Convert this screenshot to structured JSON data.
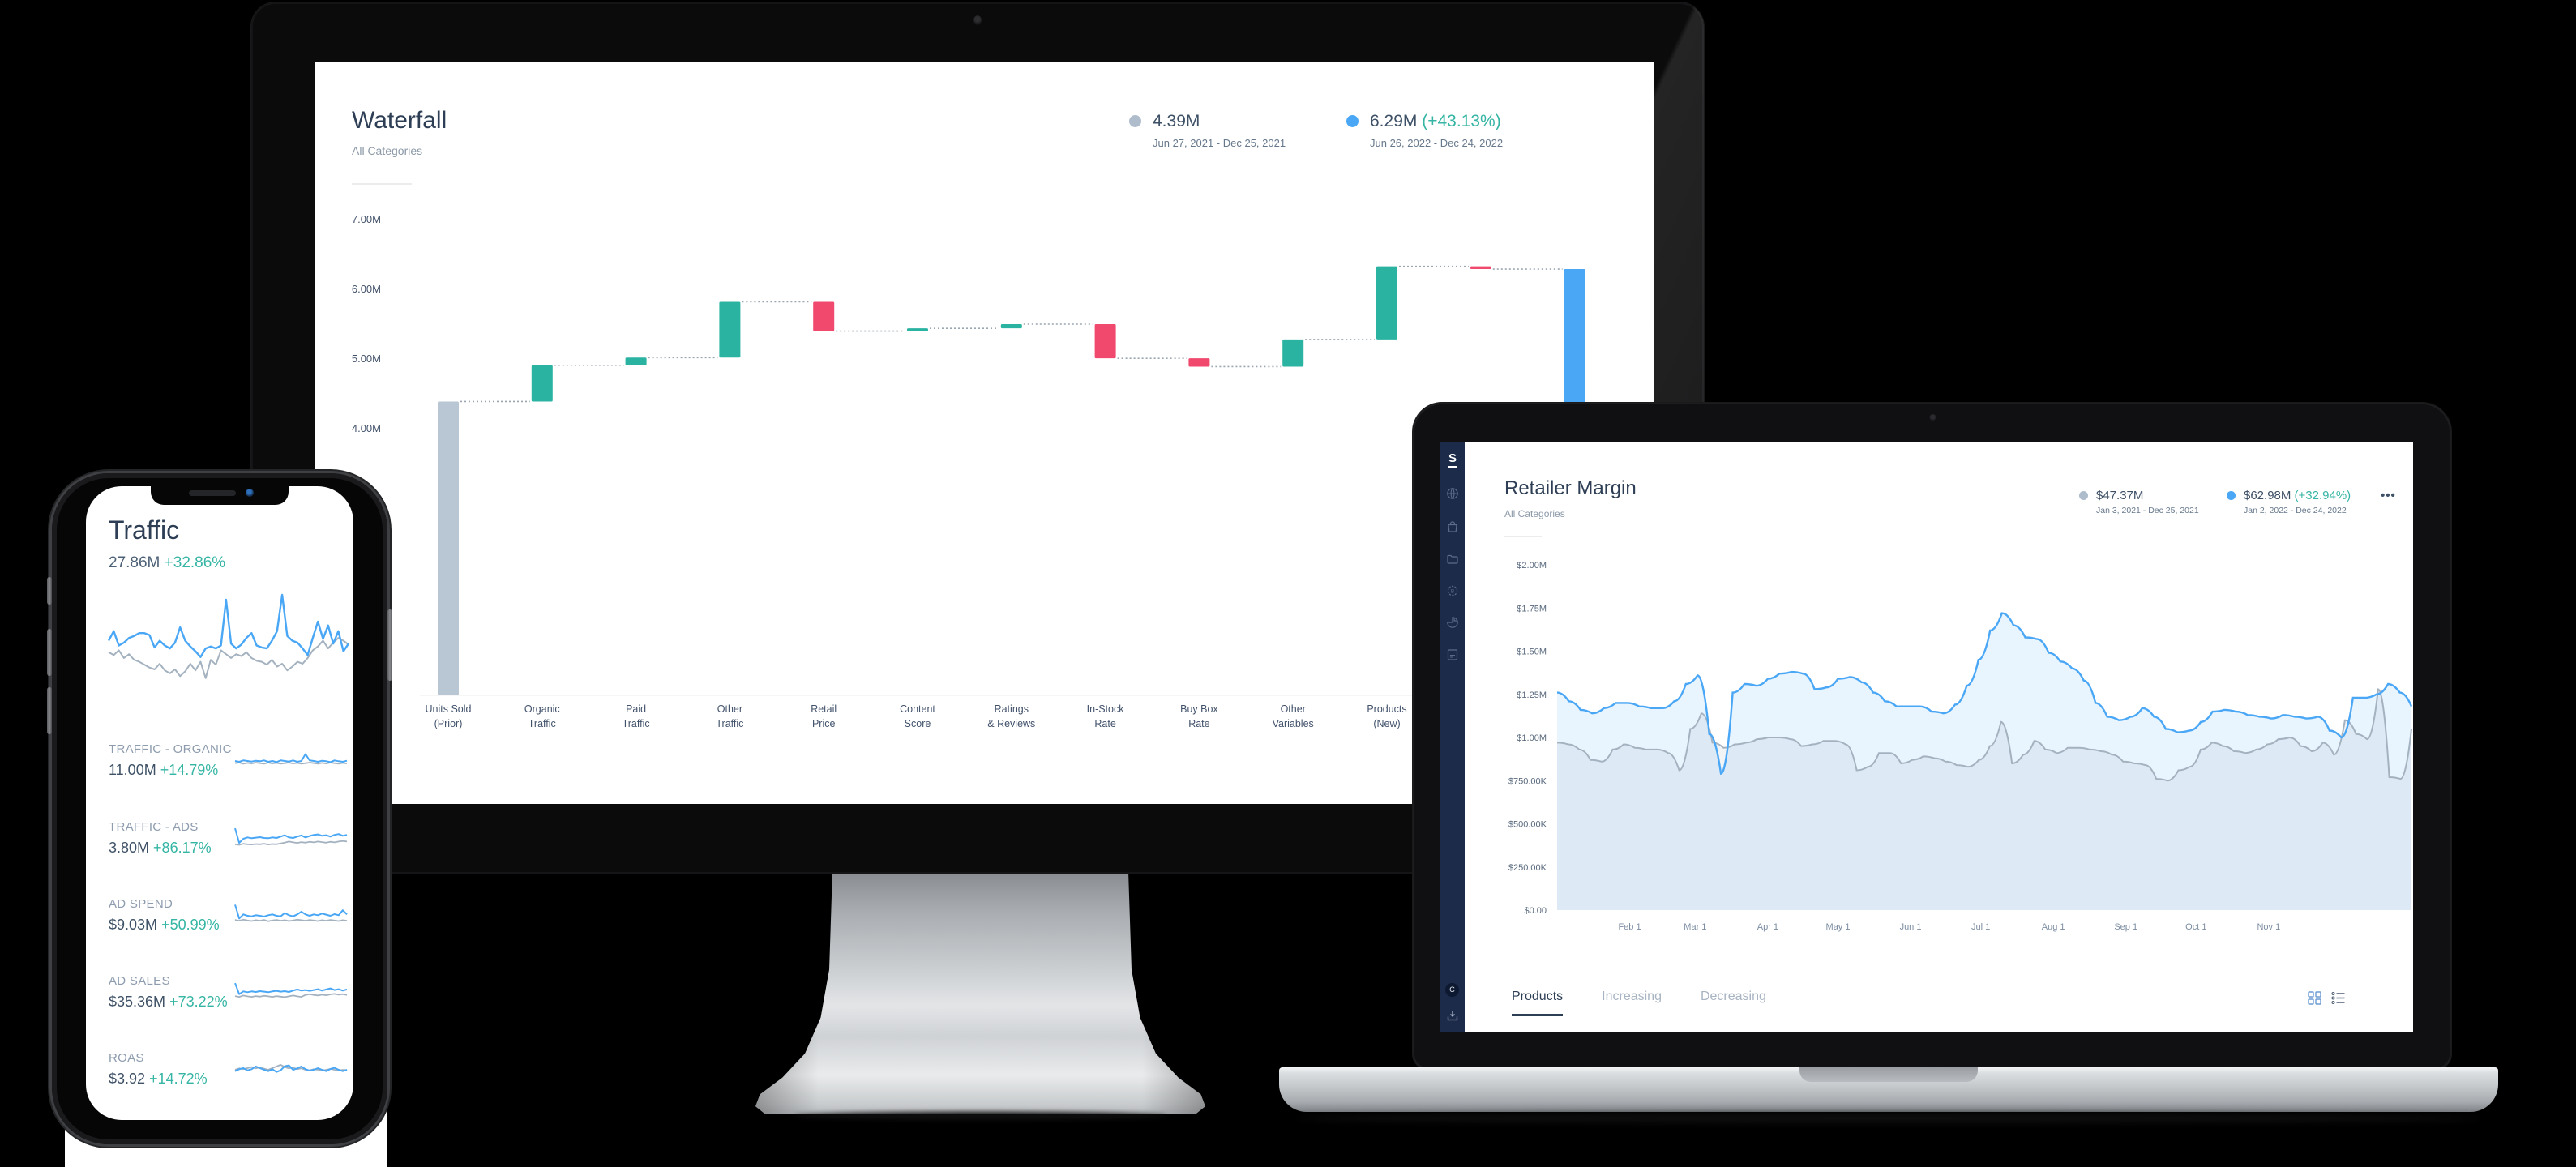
{
  "colors": {
    "accent_blue": "#4aa7f5",
    "teal": "#2bb3a2",
    "pink": "#f1496e",
    "gray_total_bar": "#b9c6d3",
    "gray_line": "#a4b2c0",
    "light_blue_fill": "rgba(77,167,245,0.13)",
    "light_gray_fill": "rgba(150,165,180,0.12)",
    "connector": "#9aa6b2",
    "legend_gray_dot": "#aebccb",
    "sidebar_bg": "#1d2b4b",
    "icon_blue": "#6b9bd2",
    "icon_slate": "#4e5d73"
  },
  "monitor": {
    "panel_title": "Waterfall",
    "panel_subtitle": "All Categories",
    "legend": {
      "prior": {
        "value": "4.39M",
        "date_range": "Jun 27, 2021 - Dec 25, 2021"
      },
      "current": {
        "value": "6.29M",
        "delta": "(+43.13%)",
        "date_range": "Jun 26, 2022 - Dec 24, 2022"
      }
    },
    "chart_data": {
      "type": "waterfall",
      "title": "Waterfall",
      "unit": "M units",
      "y_ticks": [
        {
          "value": 7,
          "label": "7.00M"
        },
        {
          "value": 6,
          "label": "6.00M"
        },
        {
          "value": 5,
          "label": "5.00M"
        },
        {
          "value": 4,
          "label": "4.00M"
        }
      ],
      "ylim": [
        0,
        7.5
      ],
      "bars": [
        {
          "label": [
            "Units Sold",
            "(Prior)"
          ],
          "from": 0,
          "to": 4.39,
          "type": "total_prior"
        },
        {
          "label": [
            "Organic",
            "Traffic"
          ],
          "from": 4.39,
          "to": 4.91,
          "type": "increase"
        },
        {
          "label": [
            "Paid",
            "Traffic"
          ],
          "from": 4.91,
          "to": 5.02,
          "type": "increase"
        },
        {
          "label": [
            "Other",
            "Traffic"
          ],
          "from": 5.02,
          "to": 5.82,
          "type": "increase"
        },
        {
          "label": [
            "Retail",
            "Price"
          ],
          "from": 5.82,
          "to": 5.4,
          "type": "decrease"
        },
        {
          "label": [
            "Content",
            "Score"
          ],
          "from": 5.4,
          "to": 5.44,
          "type": "increase"
        },
        {
          "label": [
            "Ratings",
            "& Reviews"
          ],
          "from": 5.44,
          "to": 5.5,
          "type": "increase"
        },
        {
          "label": [
            "In-Stock",
            "Rate"
          ],
          "from": 5.5,
          "to": 5.01,
          "type": "decrease"
        },
        {
          "label": [
            "Buy Box",
            "Rate"
          ],
          "from": 5.01,
          "to": 4.89,
          "type": "decrease"
        },
        {
          "label": [
            "Other",
            "Variables"
          ],
          "from": 4.89,
          "to": 5.28,
          "type": "increase"
        },
        {
          "label": [
            "Products",
            "(New)"
          ],
          "from": 5.28,
          "to": 6.33,
          "type": "increase"
        },
        {
          "label": [
            "",
            ""
          ],
          "from": 6.33,
          "to": 6.29,
          "type": "decrease"
        },
        {
          "label": [
            "",
            ""
          ],
          "from": 0,
          "to": 6.29,
          "type": "total_new"
        }
      ]
    }
  },
  "phone": {
    "title": "Traffic",
    "summary_value": "27.86M",
    "summary_delta": "+32.86%",
    "metrics": [
      {
        "label": "TRAFFIC - ORGANIC",
        "value": "11.00M",
        "delta": "+14.79%"
      },
      {
        "label": "TRAFFIC - ADS",
        "value": "3.80M",
        "delta": "+86.17%"
      },
      {
        "label": "AD SPEND",
        "value": "$9.03M",
        "delta": "+50.99%"
      },
      {
        "label": "AD SALES",
        "value": "$35.36M",
        "delta": "+73.22%"
      },
      {
        "label": "ROAS",
        "value": "$3.92",
        "delta": "+14.72%"
      }
    ],
    "chart_data": {
      "type": "line",
      "series": [
        {
          "name": "current",
          "values": [
            0.52,
            0.62,
            0.47,
            0.5,
            0.55,
            0.57,
            0.6,
            0.6,
            0.58,
            0.45,
            0.52,
            0.47,
            0.44,
            0.5,
            0.66,
            0.52,
            0.46,
            0.41,
            0.35,
            0.44,
            0.46,
            0.44,
            0.47,
            0.95,
            0.49,
            0.44,
            0.48,
            0.55,
            0.6,
            0.47,
            0.45,
            0.44,
            0.52,
            0.62,
            1.0,
            0.57,
            0.52,
            0.5,
            0.44,
            0.37,
            0.55,
            0.72,
            0.54,
            0.68,
            0.49,
            0.62,
            0.41,
            0.49
          ]
        },
        {
          "name": "previous",
          "values": [
            0.4,
            0.37,
            0.42,
            0.34,
            0.38,
            0.32,
            0.3,
            0.27,
            0.24,
            0.22,
            0.28,
            0.21,
            0.18,
            0.22,
            0.15,
            0.2,
            0.28,
            0.21,
            0.3,
            0.13,
            0.32,
            0.27,
            0.42,
            0.38,
            0.34,
            0.38,
            0.36,
            0.4,
            0.34,
            0.31,
            0.3,
            0.27,
            0.32,
            0.25,
            0.28,
            0.21,
            0.25,
            0.3,
            0.28,
            0.34,
            0.42,
            0.46,
            0.52,
            0.44,
            0.5,
            0.55,
            0.52,
            0.48
          ]
        }
      ],
      "sparklines": [
        {
          "blue": [
            0.5,
            0.47,
            0.52,
            0.5,
            0.48,
            0.51,
            0.49,
            0.52,
            0.47,
            0.5,
            0.46,
            0.52,
            0.5,
            0.48,
            0.52,
            0.47,
            0.5,
            0.75,
            0.52,
            0.5,
            0.47,
            0.51,
            0.49,
            0.46,
            0.52,
            0.49,
            0.47,
            0.51
          ],
          "gray": [
            0.42,
            0.44,
            0.4,
            0.43,
            0.41,
            0.44,
            0.42,
            0.4,
            0.44,
            0.41,
            0.43,
            0.4,
            0.42,
            0.44,
            0.41,
            0.43,
            0.4,
            0.42,
            0.44,
            0.42,
            0.4,
            0.43,
            0.41,
            0.44,
            0.42,
            0.4,
            0.43,
            0.41
          ]
        },
        {
          "blue": [
            0.88,
            0.35,
            0.5,
            0.55,
            0.52,
            0.54,
            0.56,
            0.53,
            0.52,
            0.55,
            0.53,
            0.58,
            0.63,
            0.55,
            0.53,
            0.58,
            0.62,
            0.55,
            0.6,
            0.64,
            0.66,
            0.61,
            0.63,
            0.58,
            0.64,
            0.67,
            0.61,
            0.64
          ],
          "gray": [
            0.3,
            0.28,
            0.32,
            0.3,
            0.29,
            0.31,
            0.3,
            0.32,
            0.29,
            0.31,
            0.3,
            0.33,
            0.36,
            0.4,
            0.37,
            0.35,
            0.38,
            0.36,
            0.39,
            0.37,
            0.4,
            0.38,
            0.36,
            0.39,
            0.37,
            0.4,
            0.42,
            0.4
          ]
        },
        {
          "blue": [
            0.9,
            0.4,
            0.55,
            0.5,
            0.48,
            0.52,
            0.5,
            0.47,
            0.52,
            0.55,
            0.5,
            0.48,
            0.6,
            0.52,
            0.48,
            0.55,
            0.65,
            0.55,
            0.5,
            0.55,
            0.52,
            0.58,
            0.54,
            0.5,
            0.56,
            0.52,
            0.7,
            0.55
          ],
          "gray": [
            0.35,
            0.32,
            0.36,
            0.33,
            0.31,
            0.34,
            0.32,
            0.35,
            0.3,
            0.33,
            0.35,
            0.32,
            0.34,
            0.31,
            0.33,
            0.36,
            0.34,
            0.32,
            0.35,
            0.33,
            0.31,
            0.34,
            0.32,
            0.35,
            0.33,
            0.31,
            0.34,
            0.32
          ]
        },
        {
          "blue": [
            0.85,
            0.45,
            0.55,
            0.52,
            0.55,
            0.53,
            0.56,
            0.54,
            0.52,
            0.55,
            0.57,
            0.54,
            0.56,
            0.53,
            0.58,
            0.62,
            0.58,
            0.6,
            0.57,
            0.6,
            0.63,
            0.58,
            0.62,
            0.66,
            0.6,
            0.63,
            0.58,
            0.62
          ],
          "gray": [
            0.38,
            0.35,
            0.4,
            0.37,
            0.35,
            0.38,
            0.36,
            0.39,
            0.37,
            0.35,
            0.38,
            0.36,
            0.34,
            0.37,
            0.4,
            0.37,
            0.35,
            0.42,
            0.45,
            0.42,
            0.4,
            0.43,
            0.41,
            0.44,
            0.46,
            0.43,
            0.45,
            0.42
          ]
        },
        {
          "blue": [
            0.45,
            0.52,
            0.56,
            0.48,
            0.52,
            0.62,
            0.56,
            0.5,
            0.45,
            0.52,
            0.42,
            0.48,
            0.63,
            0.66,
            0.5,
            0.55,
            0.62,
            0.52,
            0.47,
            0.5,
            0.56,
            0.5,
            0.45,
            0.53,
            0.57,
            0.5,
            0.45,
            0.5
          ],
          "gray": [
            0.5,
            0.55,
            0.52,
            0.56,
            0.6,
            0.55,
            0.58,
            0.54,
            0.5,
            0.56,
            0.62,
            0.68,
            0.6,
            0.55,
            0.58,
            0.52,
            0.55,
            0.5,
            0.48,
            0.52,
            0.5,
            0.47,
            0.5,
            0.53,
            0.5,
            0.47,
            0.5,
            0.48
          ]
        }
      ]
    }
  },
  "laptop": {
    "panel_title": "Retailer Margin",
    "panel_subtitle": "All Categories",
    "logo": "S",
    "avatar": "C",
    "legend": {
      "prior": {
        "value": "$47.37M",
        "date_range": "Jan 3, 2021 - Dec 25, 2021"
      },
      "current": {
        "value": "$62.98M",
        "delta": "(+32.94%)",
        "date_range": "Jan 2, 2022 - Dec 24, 2022"
      }
    },
    "tabs": [
      {
        "label": "Products",
        "active": true
      },
      {
        "label": "Increasing",
        "active": false
      },
      {
        "label": "Decreasing",
        "active": false
      }
    ],
    "chart_data": {
      "type": "area",
      "title": "Retailer Margin",
      "y_ticks": [
        {
          "value": 2.0,
          "label": "$2.00M"
        },
        {
          "value": 1.75,
          "label": "$1.75M"
        },
        {
          "value": 1.5,
          "label": "$1.50M"
        },
        {
          "value": 1.25,
          "label": "$1.25M"
        },
        {
          "value": 1.0,
          "label": "$1.00M"
        },
        {
          "value": 0.75,
          "label": "$750.00K"
        },
        {
          "value": 0.5,
          "label": "$500.00K"
        },
        {
          "value": 0.25,
          "label": "$250.00K"
        },
        {
          "value": 0,
          "label": "$0.00"
        }
      ],
      "x_ticks": [
        "Feb 1",
        "Mar 1",
        "Apr 1",
        "May 1",
        "Jun 1",
        "Jul 1",
        "Aug 1",
        "Sep 1",
        "Oct 1",
        "Nov 1"
      ],
      "ylim": [
        0,
        2.0
      ],
      "series": [
        {
          "name": "2022",
          "values": [
            1.26,
            1.21,
            1.16,
            1.14,
            1.17,
            1.2,
            1.2,
            1.18,
            1.17,
            1.17,
            1.21,
            1.31,
            1.36,
            1.02,
            0.79,
            1.26,
            1.31,
            1.3,
            1.34,
            1.37,
            1.38,
            1.37,
            1.28,
            1.29,
            1.34,
            1.35,
            1.32,
            1.26,
            1.21,
            1.18,
            1.18,
            1.18,
            1.15,
            1.14,
            1.19,
            1.3,
            1.45,
            1.62,
            1.72,
            1.65,
            1.58,
            1.57,
            1.49,
            1.44,
            1.4,
            1.33,
            1.2,
            1.12,
            1.1,
            1.12,
            1.17,
            1.12,
            1.05,
            1.03,
            1.04,
            1.09,
            1.15,
            1.16,
            1.15,
            1.13,
            1.12,
            1.11,
            1.13,
            1.12,
            1.11,
            1.12,
            1.04,
            1.0,
            1.23,
            1.23,
            1.25,
            1.31,
            1.26,
            1.18
          ]
        },
        {
          "name": "2021",
          "values": [
            0.97,
            0.96,
            0.93,
            0.87,
            0.86,
            0.93,
            0.96,
            0.94,
            0.93,
            0.93,
            0.91,
            0.81,
            1.05,
            1.14,
            0.97,
            0.94,
            0.96,
            0.97,
            0.99,
            1.0,
            1.0,
            0.99,
            0.95,
            0.96,
            0.98,
            0.98,
            0.96,
            0.81,
            0.83,
            0.91,
            0.91,
            0.85,
            0.87,
            0.89,
            0.88,
            0.86,
            0.84,
            0.83,
            0.87,
            0.95,
            1.09,
            0.85,
            0.9,
            0.98,
            0.93,
            0.91,
            0.94,
            0.94,
            0.93,
            0.92,
            0.9,
            0.86,
            0.85,
            0.84,
            0.76,
            0.75,
            0.81,
            0.83,
            0.93,
            0.97,
            0.95,
            0.92,
            0.91,
            0.93,
            0.96,
            0.99,
            1.0,
            0.95,
            0.92,
            0.97,
            0.9,
            1.1,
            1.02,
            0.99,
            1.28,
            0.77,
            0.76,
            1.05
          ]
        }
      ]
    }
  }
}
